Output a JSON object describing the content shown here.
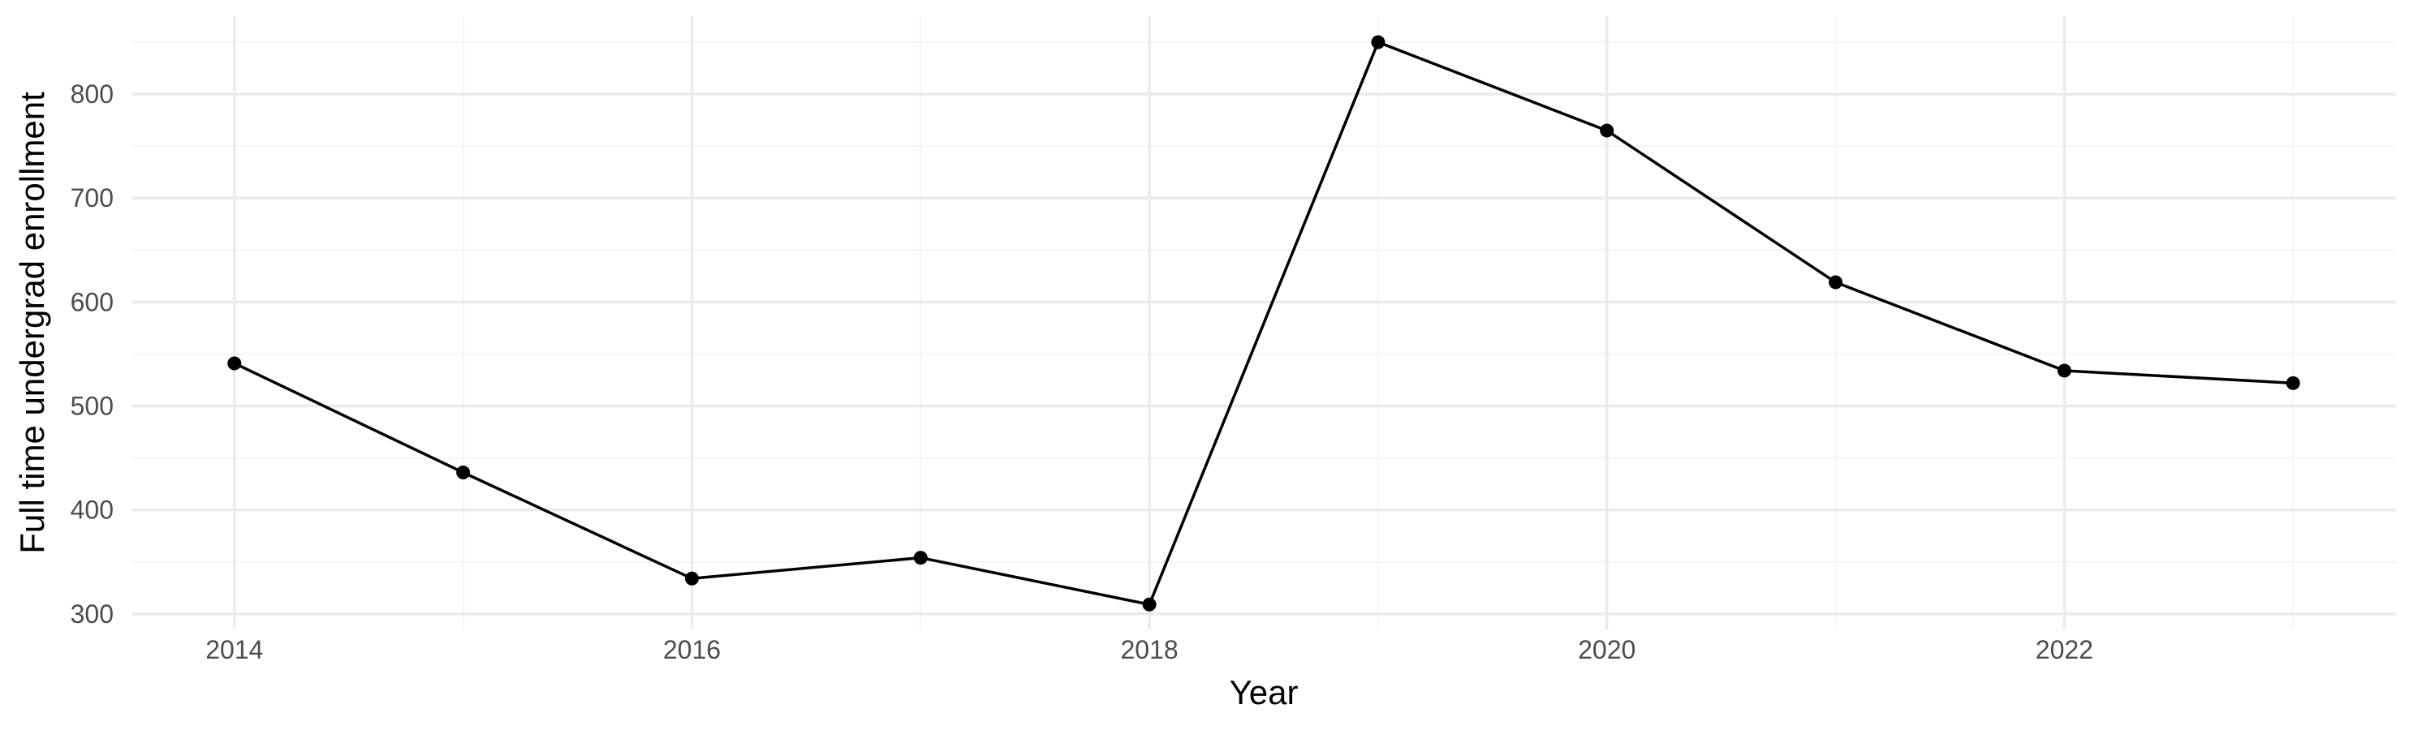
{
  "chart_data": {
    "type": "line",
    "title": "",
    "xlabel": "Year",
    "ylabel": "Full time undergrad enrollment",
    "x": [
      2014,
      2015,
      2016,
      2017,
      2018,
      2019,
      2020,
      2021,
      2022,
      2023
    ],
    "series": [
      {
        "values": [
          541,
          436,
          334,
          354,
          309,
          850,
          765,
          619,
          534,
          522
        ]
      }
    ],
    "xlim": [
      2013.55,
      2023.45
    ],
    "ylim": [
      285,
      875
    ],
    "x_ticks": [
      2014,
      2016,
      2018,
      2020,
      2022
    ],
    "x_tick_labels": [
      "2014",
      "2016",
      "2018",
      "2020",
      "2022"
    ],
    "y_ticks": [
      300,
      400,
      500,
      600,
      700,
      800
    ],
    "y_tick_labels": [
      "300",
      "400",
      "500",
      "600",
      "700",
      "800"
    ],
    "grid": true,
    "legend": "none",
    "colors": {
      "line": "#000000",
      "point": "#000000",
      "grid_major": "#ebebeb",
      "grid_minor": "#f4f4f4",
      "tick_text": "#4d4d4d"
    }
  }
}
